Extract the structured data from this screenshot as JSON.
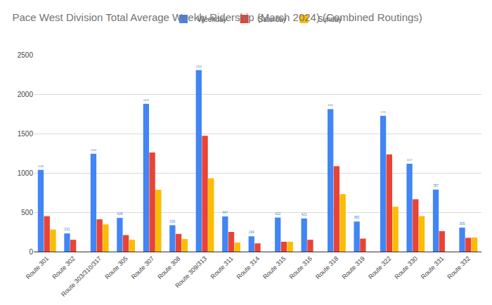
{
  "chart_data": {
    "type": "bar",
    "title": "Pace West Division Total Average Weekly Ridership (March 2024) (Combined Routings)",
    "categories": [
      "Route 301",
      "Route 302",
      "Route 303/310/317",
      "Route 305",
      "Route 307",
      "Route 308",
      "Route 309/313",
      "Route 311",
      "Route 314",
      "Route 315",
      "Route 316",
      "Route 318",
      "Route 319",
      "Route 322",
      "Route 330",
      "Route 331",
      "Route 332"
    ],
    "series": [
      {
        "name": "Weekday",
        "color": "#4285F4",
        "data_labels": true,
        "values": [
          1039,
          231,
          1244,
          428,
          1878,
          335,
          2306,
          447,
          194,
          432,
          421,
          1811,
          382,
          1725,
          1117,
          787,
          305
        ]
      },
      {
        "name": "Saturday",
        "color": "#EA4335",
        "values": [
          450,
          150,
          410,
          210,
          1260,
          225,
          1470,
          250,
          105,
          125,
          150,
          1085,
          165,
          1235,
          665,
          260,
          175
        ]
      },
      {
        "name": "Sunday",
        "color": "#FBBC04",
        "values": [
          280,
          null,
          345,
          150,
          785,
          160,
          930,
          115,
          null,
          125,
          null,
          730,
          null,
          570,
          450,
          null,
          180
        ]
      }
    ],
    "ylim": [
      0,
      2500
    ],
    "yticks": [
      0,
      500,
      1000,
      1500,
      2000,
      2500
    ],
    "grid": true,
    "legend": "top"
  }
}
